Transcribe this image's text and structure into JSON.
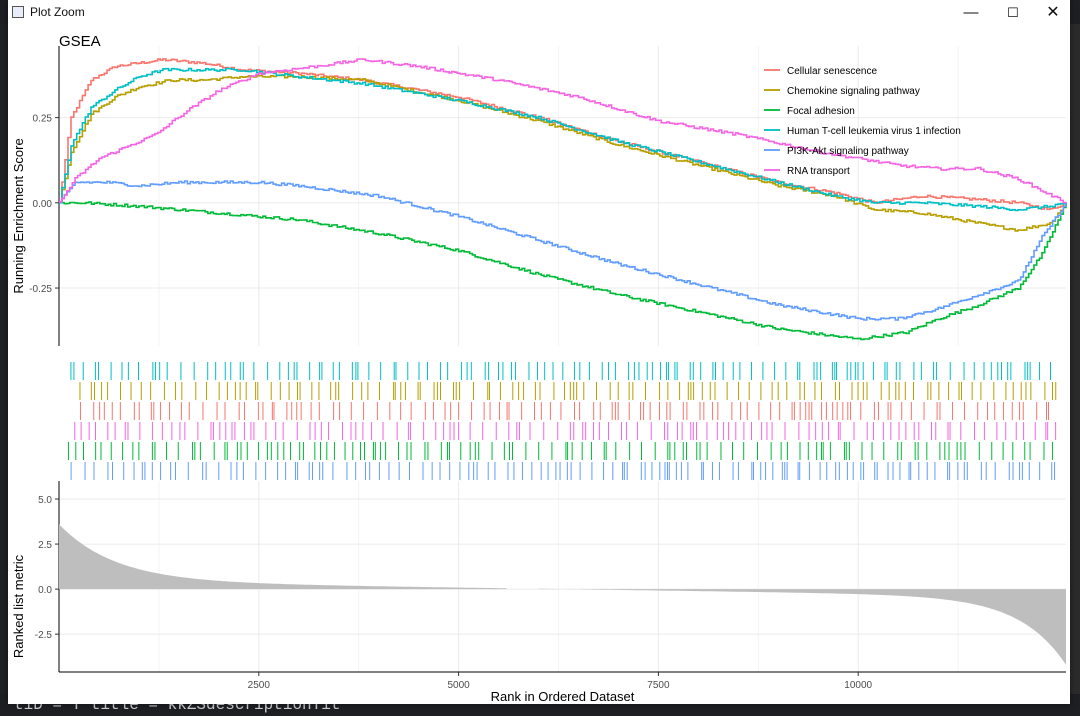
{
  "window": {
    "title": "Plot Zoom",
    "minimize_glyph": "—",
    "maximize_glyph": "☐",
    "close_glyph": "✕"
  },
  "background_code": "tiD = T title = kkZSdescriptionTit",
  "chart_data": {
    "type": "line",
    "title": "GSEA",
    "xlabel": "Rank in Ordered Dataset",
    "ylabel": "Running Enrichment Score",
    "ylabel2": "Ranked list metric",
    "xlim": [
      0,
      12600
    ],
    "ylim": [
      -0.42,
      0.46
    ],
    "ylim2": [
      -4.6,
      6.0
    ],
    "xticks": [
      2500,
      5000,
      7500,
      10000
    ],
    "xtick_labels": [
      "2500",
      "5000",
      "7500",
      "10000"
    ],
    "yticks": [
      0.25,
      0.0,
      -0.25
    ],
    "ytick_labels": [
      "0.25",
      "0.00",
      "-0.25"
    ],
    "yticks2": [
      5.0,
      2.5,
      0.0,
      -2.5
    ],
    "ytick_labels2": [
      "5.0",
      "2.5",
      "0.0",
      "-2.5"
    ],
    "legend_position": "top-right",
    "grid": true,
    "series": [
      {
        "name": "Cellular senescence",
        "color": "#F8766D",
        "x": [
          0,
          150,
          400,
          700,
          1000,
          1300,
          1800,
          2300,
          3000,
          3800,
          5000,
          6000,
          7000,
          8000,
          9000,
          9700,
          10200,
          10800,
          11500,
          12000,
          12400,
          12600
        ],
        "y": [
          0.0,
          0.25,
          0.36,
          0.4,
          0.41,
          0.42,
          0.41,
          0.39,
          0.38,
          0.36,
          0.31,
          0.25,
          0.18,
          0.12,
          0.06,
          0.03,
          0.0,
          0.02,
          0.01,
          0.0,
          -0.02,
          0.0
        ]
      },
      {
        "name": "Chemokine signaling pathway",
        "color": "#B79F00",
        "x": [
          0,
          150,
          400,
          700,
          1000,
          1400,
          1800,
          2300,
          3000,
          3800,
          5000,
          6000,
          7000,
          8000,
          9000,
          9700,
          10200,
          10800,
          11500,
          12000,
          12400,
          12600
        ],
        "y": [
          0.0,
          0.15,
          0.26,
          0.31,
          0.34,
          0.36,
          0.36,
          0.37,
          0.37,
          0.36,
          0.3,
          0.24,
          0.17,
          0.11,
          0.05,
          0.02,
          -0.02,
          -0.03,
          -0.06,
          -0.08,
          -0.06,
          0.0
        ]
      },
      {
        "name": "Focal adhesion",
        "color": "#00BA38",
        "x": [
          0,
          300,
          1000,
          2000,
          3000,
          4000,
          5000,
          6000,
          7000,
          8000,
          9000,
          10000,
          10600,
          11000,
          11500,
          12000,
          12300,
          12600
        ],
        "y": [
          0.0,
          0.0,
          -0.01,
          -0.03,
          -0.05,
          -0.09,
          -0.14,
          -0.21,
          -0.27,
          -0.32,
          -0.37,
          -0.4,
          -0.38,
          -0.34,
          -0.3,
          -0.25,
          -0.15,
          0.0
        ]
      },
      {
        "name": "Human T-cell leukemia virus 1 infection",
        "color": "#00BFC4",
        "x": [
          0,
          150,
          400,
          700,
          1000,
          1300,
          1800,
          2300,
          3000,
          3800,
          5000,
          6000,
          7000,
          8000,
          9000,
          9700,
          10200,
          10800,
          11500,
          12000,
          12400,
          12600
        ],
        "y": [
          0.0,
          0.17,
          0.28,
          0.33,
          0.37,
          0.39,
          0.39,
          0.39,
          0.37,
          0.35,
          0.3,
          0.25,
          0.18,
          0.12,
          0.06,
          0.02,
          0.0,
          0.0,
          -0.01,
          -0.02,
          -0.01,
          0.0
        ]
      },
      {
        "name": "PI3K-Akt signaling pathway",
        "color": "#619CFF",
        "x": [
          0,
          200,
          600,
          1000,
          1500,
          2000,
          2500,
          3000,
          4000,
          5000,
          6000,
          7000,
          8000,
          9000,
          10000,
          10500,
          11000,
          11500,
          12000,
          12300,
          12600
        ],
        "y": [
          0.0,
          0.06,
          0.06,
          0.05,
          0.06,
          0.06,
          0.06,
          0.05,
          0.02,
          -0.04,
          -0.11,
          -0.18,
          -0.24,
          -0.3,
          -0.34,
          -0.34,
          -0.31,
          -0.27,
          -0.23,
          -0.1,
          0.0
        ]
      },
      {
        "name": "RNA transport",
        "color": "#F564E3",
        "x": [
          0,
          200,
          500,
          900,
          1200,
          1600,
          2000,
          2500,
          3200,
          3800,
          4500,
          5500,
          6500,
          7500,
          8500,
          9500,
          10500,
          11000,
          11500,
          12000,
          12600
        ],
        "y": [
          0.0,
          0.07,
          0.13,
          0.17,
          0.2,
          0.27,
          0.33,
          0.38,
          0.4,
          0.42,
          0.4,
          0.36,
          0.31,
          0.24,
          0.2,
          0.15,
          0.11,
          0.1,
          0.1,
          0.07,
          0.0
        ]
      }
    ],
    "rug_order": [
      "Human T-cell leukemia virus 1 infection",
      "Chemokine signaling pathway",
      "Cellular senescence",
      "RNA transport",
      "Focal adhesion",
      "PI3K-Akt signaling pathway"
    ]
  }
}
